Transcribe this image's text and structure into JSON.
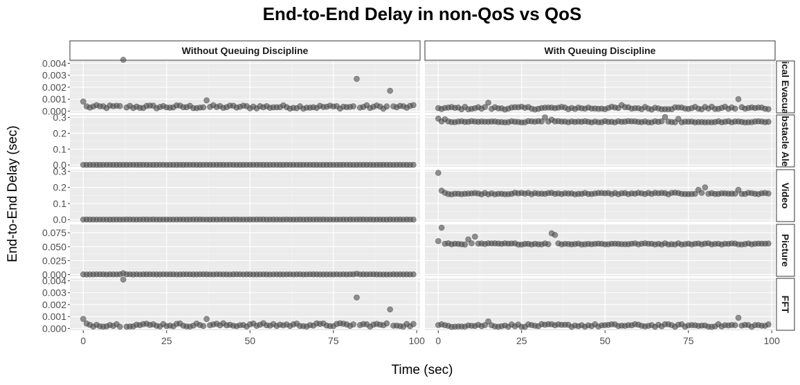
{
  "chart_data": {
    "type": "scatter",
    "title": "End-to-End Delay in non-QoS vs QoS",
    "xlabel": "Time (sec)",
    "ylabel": "End-to-End Delay (sec)",
    "xlim": [
      -4,
      101
    ],
    "x_ticks": [
      0,
      25,
      50,
      75,
      100
    ],
    "x_tick_labels": [
      "0",
      "25",
      "50",
      "75",
      "100"
    ],
    "grid": true,
    "point_color": "#4d4d4d",
    "columns": [
      "Without Queuing Discipline",
      "With Queuing Discipline"
    ],
    "rows": [
      {
        "label": "Medical Evacuation",
        "ylim": [
          -0.00015,
          0.0042
        ],
        "y_ticks": [
          0,
          0.001,
          0.002,
          0.003,
          0.004
        ],
        "y_tick_labels": [
          "0.000",
          "0.001",
          "0.002",
          "0.003",
          "0.004"
        ],
        "base": [
          0.00035,
          0.00025
        ],
        "noise": [
          0.00015,
          0.00012
        ],
        "outliers": [
          [
            [
              0,
              0.0008
            ],
            [
              12,
              0.0043
            ],
            [
              37,
              0.0009
            ],
            [
              82,
              0.0027
            ],
            [
              92,
              0.0017
            ]
          ],
          [
            [
              15,
              0.0007
            ],
            [
              55,
              0.0005
            ],
            [
              90,
              0.001
            ]
          ]
        ]
      },
      {
        "label": "Obstacle Alert",
        "ylim": [
          -0.012,
          0.315
        ],
        "y_ticks": [
          0,
          0.1,
          0.2,
          0.3
        ],
        "y_tick_labels": [
          "0.0",
          "0.1",
          "0.2",
          "0.3"
        ],
        "base": [
          0.0006,
          0.272
        ],
        "noise": [
          0.0003,
          0.004
        ],
        "outliers": [
          [],
          [
            [
              0,
              0.292
            ],
            [
              2,
              0.288
            ],
            [
              32,
              0.3
            ],
            [
              34,
              0.285
            ],
            [
              68,
              0.302
            ],
            [
              72,
              0.29
            ]
          ]
        ]
      },
      {
        "label": "Video",
        "ylim": [
          -0.012,
          0.31
        ],
        "y_ticks": [
          0,
          0.1,
          0.2,
          0.3
        ],
        "y_tick_labels": [
          "0.0",
          "0.1",
          "0.2",
          "0.3"
        ],
        "base": [
          0.0006,
          0.162
        ],
        "noise": [
          0.0003,
          0.005
        ],
        "outliers": [
          [],
          [
            [
              0,
              0.29
            ],
            [
              1,
              0.18
            ],
            [
              78,
              0.185
            ],
            [
              80,
              0.2
            ],
            [
              90,
              0.185
            ]
          ]
        ]
      },
      {
        "label": "Picture",
        "ylim": [
          -0.003,
          0.09
        ],
        "y_ticks": [
          0,
          0.025,
          0.05,
          0.075
        ],
        "y_tick_labels": [
          "0.000",
          "0.025",
          "0.050",
          "0.075"
        ],
        "base": [
          0.0003,
          0.055
        ],
        "noise": [
          0.0002,
          0.0012
        ],
        "outliers": [
          [
            [
              12,
              0.0025
            ],
            [
              82,
              0.0015
            ]
          ],
          [
            [
              0,
              0.06
            ],
            [
              1,
              0.084
            ],
            [
              9,
              0.063
            ],
            [
              11,
              0.068
            ],
            [
              34,
              0.074
            ],
            [
              35,
              0.071
            ]
          ]
        ]
      },
      {
        "label": "FFT",
        "ylim": [
          -0.00015,
          0.0042
        ],
        "y_ticks": [
          0,
          0.001,
          0.002,
          0.003,
          0.004
        ],
        "y_tick_labels": [
          "0.000",
          "0.001",
          "0.002",
          "0.003",
          "0.004"
        ],
        "base": [
          0.0003,
          0.00025
        ],
        "noise": [
          0.00015,
          0.00012
        ],
        "outliers": [
          [
            [
              0,
              0.0008
            ],
            [
              12,
              0.0041
            ],
            [
              37,
              0.0008
            ],
            [
              82,
              0.0026
            ],
            [
              92,
              0.0016
            ]
          ],
          [
            [
              15,
              0.0006
            ],
            [
              90,
              0.0009
            ]
          ]
        ]
      }
    ]
  }
}
